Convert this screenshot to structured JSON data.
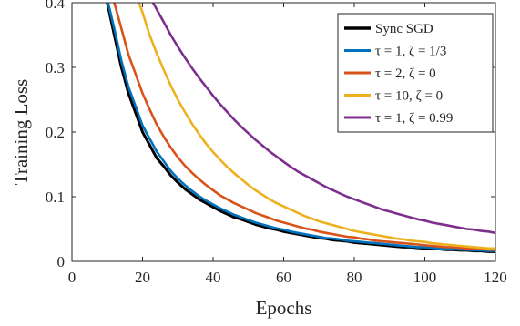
{
  "chart_data": {
    "type": "line",
    "title": "",
    "xlabel": "Epochs",
    "ylabel": "Training Loss",
    "xlim": [
      0,
      120
    ],
    "ylim": [
      0,
      0.4
    ],
    "xticks": [
      0,
      20,
      40,
      60,
      80,
      100,
      120
    ],
    "xtick_labels": [
      "0",
      "20",
      "40",
      "60",
      "80",
      "100",
      "120"
    ],
    "yticks": [
      0,
      0.1,
      0.2,
      0.3,
      0.4
    ],
    "ytick_labels": [
      "0",
      "0.1",
      "0.2",
      "0.3",
      "0.4"
    ],
    "grid": false,
    "legend": {
      "position": "top-right",
      "entries": [
        "Sync SGD",
        "τ = 1, ζ = 1/3",
        "τ = 2, ζ = 0",
        "τ = 10, ζ = 0",
        "τ = 1, ζ = 0.99"
      ]
    },
    "series": [
      {
        "name": "Sync SGD",
        "color": "#000000",
        "x": [
          10,
          12,
          14,
          16,
          18,
          20,
          22,
          24,
          26,
          28,
          30,
          32,
          34,
          36,
          38,
          40,
          42,
          44,
          46,
          48,
          50,
          52,
          54,
          56,
          58,
          60,
          62,
          64,
          66,
          68,
          70,
          72,
          74,
          76,
          78,
          80,
          82,
          84,
          86,
          88,
          90,
          92,
          94,
          96,
          98,
          100,
          102,
          104,
          106,
          108,
          110,
          112,
          114,
          116,
          118,
          120
        ],
        "y": [
          0.4,
          0.35,
          0.3,
          0.26,
          0.23,
          0.2,
          0.18,
          0.16,
          0.147,
          0.133,
          0.122,
          0.112,
          0.104,
          0.096,
          0.09,
          0.084,
          0.078,
          0.073,
          0.068,
          0.065,
          0.061,
          0.057,
          0.054,
          0.051,
          0.049,
          0.046,
          0.044,
          0.042,
          0.04,
          0.038,
          0.036,
          0.035,
          0.033,
          0.032,
          0.031,
          0.029,
          0.028,
          0.027,
          0.026,
          0.025,
          0.024,
          0.023,
          0.022,
          0.022,
          0.021,
          0.02,
          0.02,
          0.019,
          0.018,
          0.018,
          0.017,
          0.017,
          0.016,
          0.016,
          0.015,
          0.015
        ]
      },
      {
        "name": "τ = 1, ζ = 1/3",
        "color": "#0072BD",
        "x": [
          10,
          12,
          14,
          16,
          18,
          20,
          22,
          24,
          26,
          28,
          30,
          32,
          34,
          36,
          38,
          40,
          42,
          44,
          46,
          48,
          50,
          52,
          54,
          56,
          58,
          60,
          62,
          64,
          66,
          68,
          70,
          72,
          74,
          76,
          78,
          80,
          82,
          84,
          86,
          88,
          90,
          92,
          94,
          96,
          98,
          100,
          102,
          104,
          106,
          108,
          110,
          112,
          114,
          116,
          118,
          120
        ],
        "y": [
          0.405,
          0.36,
          0.31,
          0.27,
          0.24,
          0.21,
          0.19,
          0.17,
          0.155,
          0.14,
          0.128,
          0.118,
          0.109,
          0.101,
          0.094,
          0.088,
          0.082,
          0.077,
          0.072,
          0.068,
          0.064,
          0.06,
          0.057,
          0.054,
          0.051,
          0.049,
          0.046,
          0.044,
          0.042,
          0.04,
          0.038,
          0.036,
          0.035,
          0.034,
          0.032,
          0.031,
          0.03,
          0.029,
          0.028,
          0.027,
          0.026,
          0.025,
          0.024,
          0.023,
          0.022,
          0.022,
          0.021,
          0.02,
          0.02,
          0.019,
          0.018,
          0.018,
          0.017,
          0.017,
          0.016,
          0.016
        ]
      },
      {
        "name": "τ = 2, ζ = 0",
        "color": "#D95319",
        "x": [
          12,
          14,
          16,
          18,
          20,
          22,
          24,
          26,
          28,
          30,
          32,
          34,
          36,
          38,
          40,
          42,
          44,
          46,
          48,
          50,
          52,
          54,
          56,
          58,
          60,
          62,
          64,
          66,
          68,
          70,
          72,
          74,
          76,
          78,
          80,
          82,
          84,
          86,
          88,
          90,
          92,
          94,
          96,
          98,
          100,
          102,
          104,
          106,
          108,
          110,
          112,
          114,
          116,
          118,
          120
        ],
        "y": [
          0.4,
          0.36,
          0.32,
          0.29,
          0.26,
          0.235,
          0.212,
          0.193,
          0.176,
          0.161,
          0.148,
          0.137,
          0.127,
          0.118,
          0.11,
          0.102,
          0.096,
          0.09,
          0.085,
          0.08,
          0.075,
          0.071,
          0.067,
          0.063,
          0.06,
          0.057,
          0.054,
          0.051,
          0.049,
          0.046,
          0.044,
          0.042,
          0.04,
          0.038,
          0.037,
          0.035,
          0.034,
          0.032,
          0.031,
          0.03,
          0.029,
          0.028,
          0.027,
          0.026,
          0.025,
          0.024,
          0.023,
          0.022,
          0.022,
          0.021,
          0.02,
          0.02,
          0.019,
          0.018,
          0.018
        ]
      },
      {
        "name": "τ = 10, ζ = 0",
        "color": "#EDB120",
        "x": [
          19,
          20,
          22,
          24,
          26,
          28,
          30,
          32,
          34,
          36,
          38,
          40,
          42,
          44,
          46,
          48,
          50,
          52,
          54,
          56,
          58,
          60,
          62,
          64,
          66,
          68,
          70,
          72,
          74,
          76,
          78,
          80,
          82,
          84,
          86,
          88,
          90,
          92,
          94,
          96,
          98,
          100,
          102,
          104,
          106,
          108,
          110,
          112,
          114,
          116,
          118,
          120
        ],
        "y": [
          0.4,
          0.385,
          0.35,
          0.322,
          0.296,
          0.272,
          0.25,
          0.231,
          0.213,
          0.197,
          0.182,
          0.169,
          0.157,
          0.146,
          0.136,
          0.127,
          0.118,
          0.11,
          0.103,
          0.096,
          0.09,
          0.085,
          0.08,
          0.075,
          0.07,
          0.066,
          0.062,
          0.059,
          0.056,
          0.053,
          0.05,
          0.047,
          0.045,
          0.043,
          0.041,
          0.039,
          0.037,
          0.035,
          0.034,
          0.032,
          0.031,
          0.03,
          0.028,
          0.027,
          0.026,
          0.025,
          0.024,
          0.023,
          0.022,
          0.021,
          0.02,
          0.02
        ]
      },
      {
        "name": "τ = 1, ζ = 0.99",
        "color": "#7E2F8E",
        "x": [
          23,
          24,
          26,
          28,
          30,
          32,
          34,
          36,
          38,
          40,
          42,
          44,
          46,
          48,
          50,
          52,
          54,
          56,
          58,
          60,
          62,
          64,
          66,
          68,
          70,
          72,
          74,
          76,
          78,
          80,
          82,
          84,
          86,
          88,
          90,
          92,
          94,
          96,
          98,
          100,
          102,
          104,
          106,
          108,
          110,
          112,
          114,
          116,
          118,
          120
        ],
        "y": [
          0.4,
          0.39,
          0.37,
          0.35,
          0.332,
          0.315,
          0.299,
          0.284,
          0.27,
          0.256,
          0.243,
          0.231,
          0.219,
          0.208,
          0.198,
          0.188,
          0.179,
          0.17,
          0.162,
          0.154,
          0.146,
          0.139,
          0.133,
          0.127,
          0.121,
          0.115,
          0.11,
          0.105,
          0.1,
          0.096,
          0.092,
          0.088,
          0.084,
          0.08,
          0.077,
          0.074,
          0.071,
          0.068,
          0.065,
          0.063,
          0.06,
          0.058,
          0.056,
          0.054,
          0.052,
          0.05,
          0.049,
          0.047,
          0.046,
          0.044
        ]
      }
    ]
  }
}
